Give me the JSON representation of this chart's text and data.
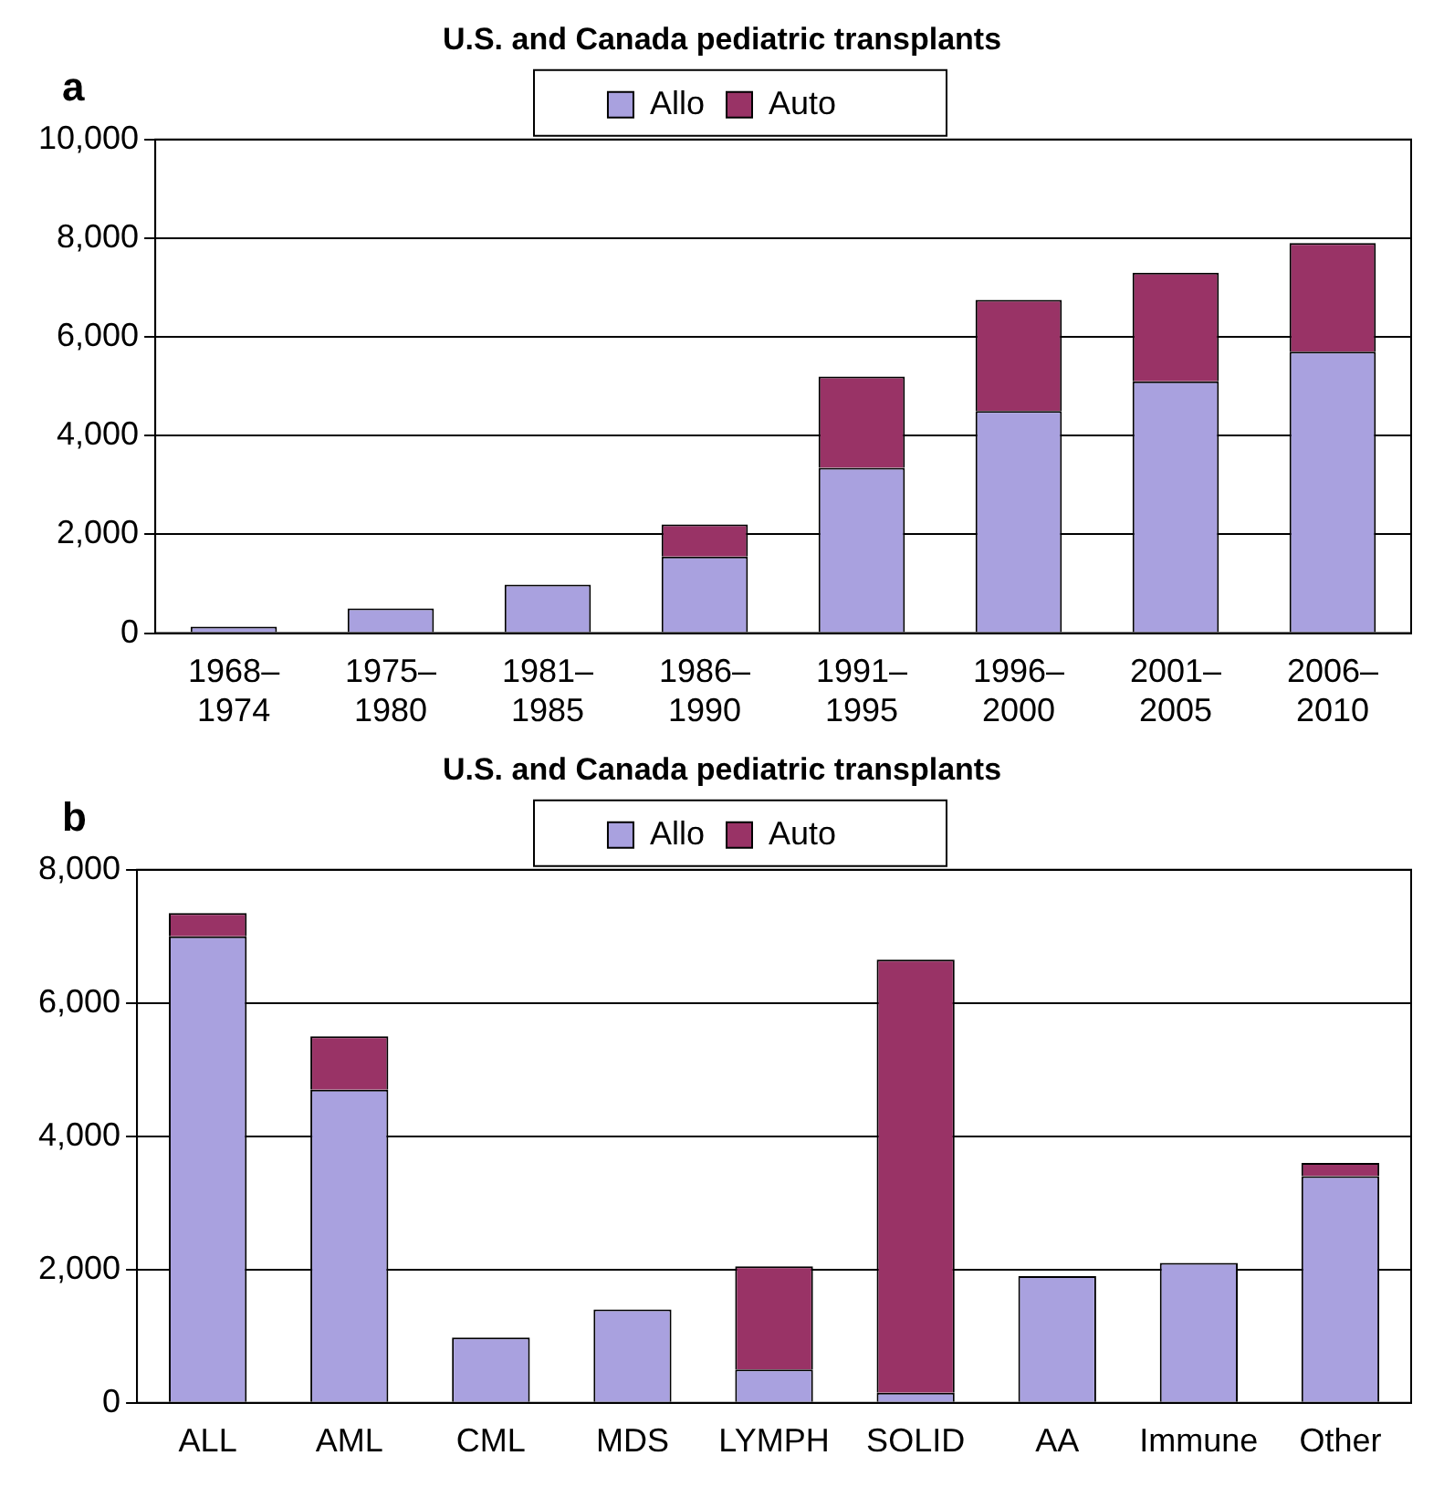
{
  "chart_data": [
    {
      "type": "bar",
      "title": "U.S. and Canada pediatric transplants",
      "annotations": [
        "a"
      ],
      "stacked": true,
      "legend": "top",
      "grid": "y",
      "categories": [
        "1968–1974",
        "1975–1980",
        "1981–1985",
        "1986–1990",
        "1991–1995",
        "1996–2000",
        "2001–2005",
        "2006–2010"
      ],
      "series": [
        {
          "name": "Allo",
          "color": "#a9a1df",
          "values": [
            130,
            500,
            980,
            1550,
            3350,
            4500,
            5100,
            5700
          ]
        },
        {
          "name": "Auto",
          "color": "#993366",
          "values": [
            null,
            null,
            null,
            650,
            1850,
            2250,
            2200,
            2200
          ]
        }
      ],
      "ylim": [
        0,
        10000
      ],
      "yticks": [
        {
          "value": 0,
          "label": "0"
        },
        {
          "value": 2000,
          "label": "2,000"
        },
        {
          "value": 4000,
          "label": "4,000"
        },
        {
          "value": 6000,
          "label": "6,000"
        },
        {
          "value": 8000,
          "label": "8,000"
        },
        {
          "value": 10000,
          "label": "10,000"
        }
      ]
    },
    {
      "type": "bar",
      "title": "U.S. and Canada pediatric transplants",
      "annotations": [
        "b"
      ],
      "stacked": true,
      "legend": "top",
      "grid": "y",
      "categories": [
        "ALL",
        "AML",
        "CML",
        "MDS",
        "LYMPH",
        "SOLID",
        "AA",
        "Immune",
        "Other"
      ],
      "series": [
        {
          "name": "Allo",
          "color": "#a9a1df",
          "values": [
            7000,
            4700,
            980,
            1400,
            500,
            150,
            1900,
            2100,
            3400
          ]
        },
        {
          "name": "Auto",
          "color": "#993366",
          "values": [
            350,
            800,
            null,
            null,
            1550,
            6500,
            null,
            null,
            200
          ]
        }
      ],
      "ylim": [
        0,
        8000
      ],
      "yticks": [
        {
          "value": 0,
          "label": "0"
        },
        {
          "value": 2000,
          "label": "2,000"
        },
        {
          "value": 4000,
          "label": "4,000"
        },
        {
          "value": 6000,
          "label": "6,000"
        },
        {
          "value": 8000,
          "label": "8,000"
        }
      ]
    }
  ]
}
